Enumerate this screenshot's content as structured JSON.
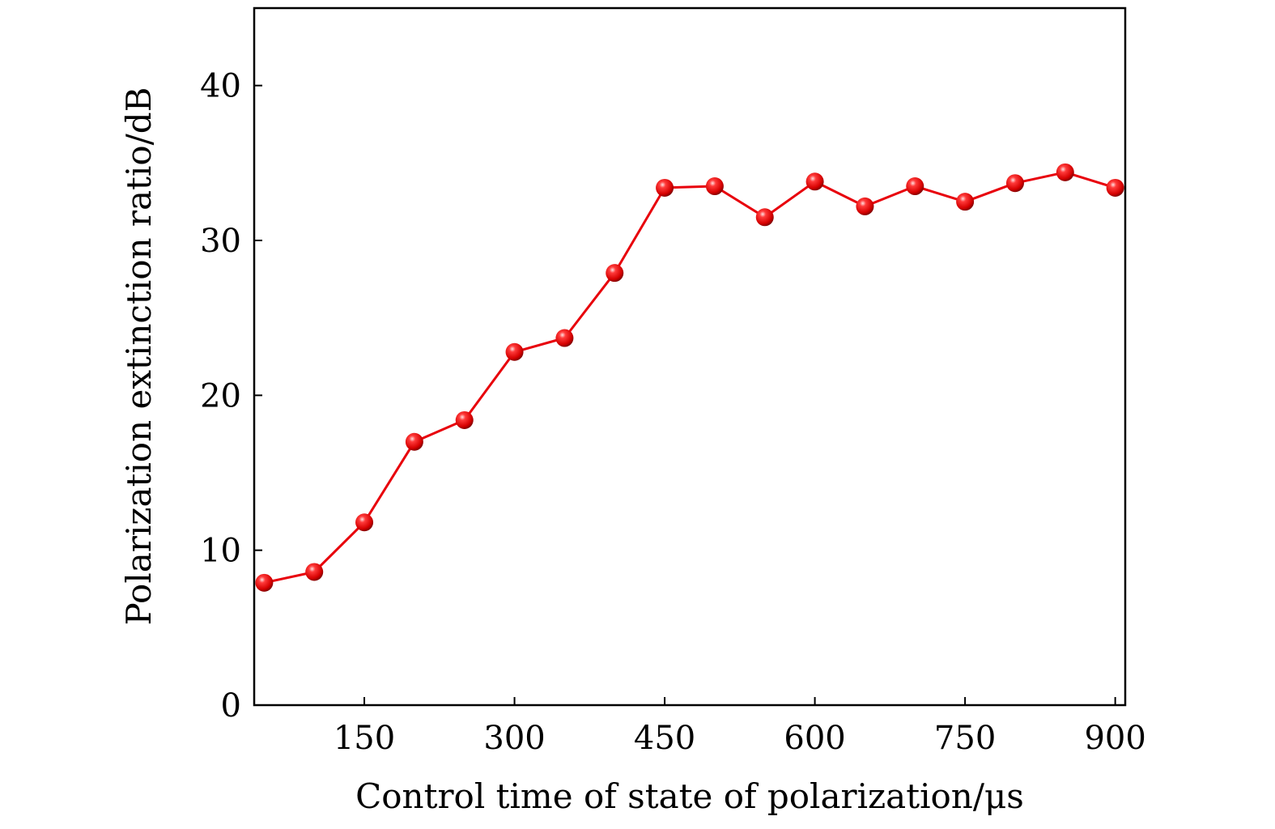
{
  "chart_data": {
    "type": "line",
    "title": "",
    "xlabel": "Control time of state of polarization/μs",
    "ylabel": "Polarization extinction ratio/dB",
    "xlim": [
      40,
      910
    ],
    "ylim": [
      0,
      45
    ],
    "x_ticks": [
      150,
      300,
      450,
      600,
      750,
      900
    ],
    "y_ticks": [
      0,
      10,
      20,
      30,
      40
    ],
    "grid": false,
    "series": [
      {
        "color": "#e8000b",
        "marker": "sphere",
        "x": [
          50,
          100,
          150,
          200,
          250,
          300,
          350,
          400,
          450,
          500,
          550,
          600,
          650,
          700,
          750,
          800,
          850,
          900
        ],
        "y": [
          7.9,
          8.6,
          11.8,
          17.0,
          18.4,
          22.8,
          23.7,
          27.9,
          33.4,
          33.5,
          31.5,
          33.8,
          32.2,
          33.5,
          32.5,
          33.7,
          34.4,
          33.4
        ]
      }
    ]
  }
}
